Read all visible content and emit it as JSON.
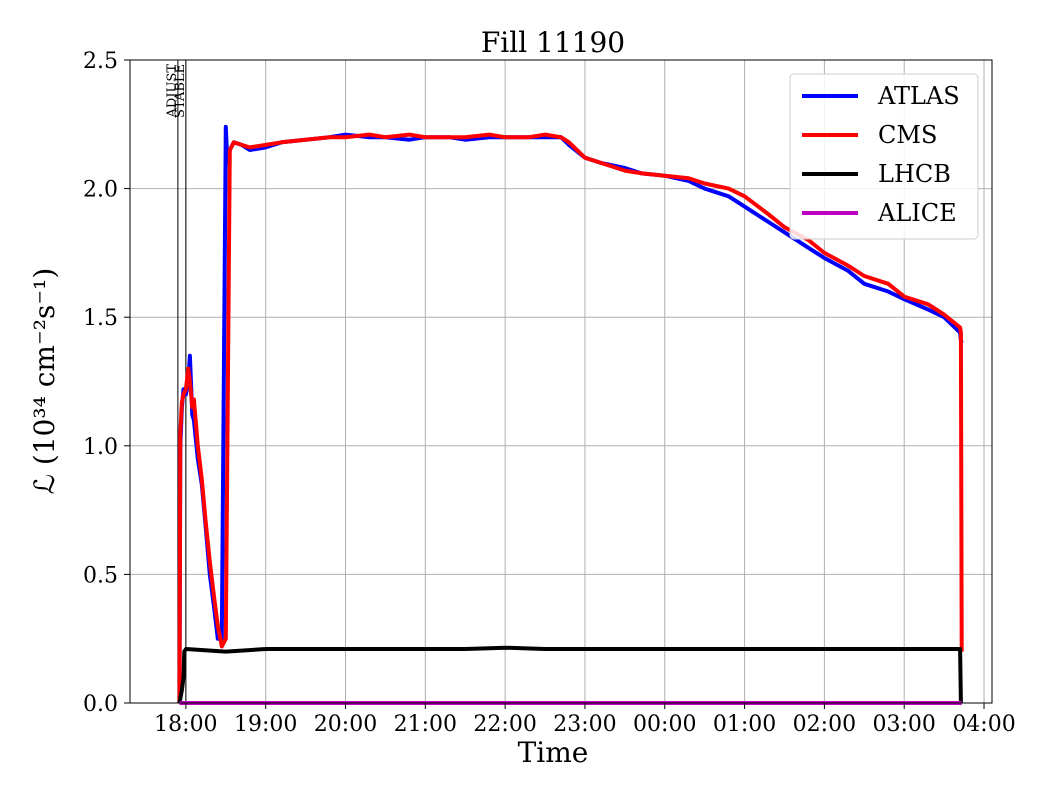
{
  "chart_data": {
    "type": "line",
    "title": "Fill 11190",
    "xlabel": "Time",
    "ylabel": "ℒ (10³⁴ cm⁻²s⁻¹)",
    "x_ticks": [
      "18:00",
      "19:00",
      "20:00",
      "21:00",
      "22:00",
      "23:00",
      "00:00",
      "01:00",
      "02:00",
      "03:00",
      "04:00"
    ],
    "y_ticks": [
      "0.0",
      "0.5",
      "1.0",
      "1.5",
      "2.0",
      "2.5"
    ],
    "xlim_hours": [
      17.3,
      28.1
    ],
    "ylim": [
      0,
      2.5
    ],
    "grid": true,
    "legend_position": "top-right",
    "markers": [
      {
        "label": "ADJUST",
        "x": 17.9
      },
      {
        "label": "STABLE",
        "x": 18.0
      }
    ],
    "series": [
      {
        "name": "ATLAS",
        "color": "#0000ff",
        "x": [
          17.92,
          17.93,
          17.95,
          17.97,
          18.0,
          18.03,
          18.05,
          18.08,
          18.1,
          18.15,
          18.2,
          18.25,
          18.3,
          18.35,
          18.4,
          18.45,
          18.5,
          18.52,
          18.55,
          18.6,
          18.7,
          18.8,
          19.0,
          19.2,
          19.5,
          19.8,
          20.0,
          20.3,
          20.5,
          20.8,
          21.0,
          21.3,
          21.5,
          21.8,
          22.0,
          22.3,
          22.5,
          22.7,
          22.8,
          23.0,
          23.2,
          23.5,
          23.7,
          24.0,
          24.3,
          24.5,
          24.8,
          25.0,
          25.3,
          25.5,
          25.8,
          26.0,
          26.3,
          26.5,
          26.8,
          27.0,
          27.3,
          27.5,
          27.7,
          27.71,
          27.72
        ],
        "y": [
          0.0,
          1.0,
          1.15,
          1.22,
          1.2,
          1.25,
          1.35,
          1.12,
          1.1,
          0.95,
          0.85,
          0.68,
          0.5,
          0.38,
          0.25,
          0.25,
          2.24,
          2.1,
          2.15,
          2.18,
          2.17,
          2.15,
          2.16,
          2.18,
          2.19,
          2.2,
          2.21,
          2.2,
          2.2,
          2.19,
          2.2,
          2.2,
          2.19,
          2.2,
          2.2,
          2.2,
          2.2,
          2.2,
          2.17,
          2.12,
          2.1,
          2.08,
          2.06,
          2.05,
          2.03,
          2.0,
          1.97,
          1.93,
          1.87,
          1.83,
          1.77,
          1.73,
          1.68,
          1.63,
          1.6,
          1.57,
          1.53,
          1.5,
          1.44,
          1.41,
          1.4
        ]
      },
      {
        "name": "CMS",
        "color": "#ff0000",
        "x": [
          17.92,
          17.93,
          17.95,
          17.97,
          18.0,
          18.03,
          18.05,
          18.08,
          18.1,
          18.15,
          18.2,
          18.25,
          18.3,
          18.35,
          18.4,
          18.45,
          18.5,
          18.55,
          18.6,
          18.7,
          18.8,
          19.0,
          19.2,
          19.5,
          19.8,
          20.0,
          20.3,
          20.5,
          20.8,
          21.0,
          21.3,
          21.5,
          21.8,
          22.0,
          22.3,
          22.5,
          22.7,
          22.8,
          23.0,
          23.2,
          23.5,
          23.7,
          24.0,
          24.3,
          24.5,
          24.8,
          25.0,
          25.3,
          25.5,
          25.8,
          26.0,
          26.3,
          26.5,
          26.8,
          27.0,
          27.3,
          27.5,
          27.7,
          27.71,
          27.72
        ],
        "y": [
          0.0,
          1.05,
          1.17,
          1.2,
          1.22,
          1.3,
          1.25,
          1.15,
          1.18,
          1.0,
          0.87,
          0.7,
          0.55,
          0.42,
          0.3,
          0.22,
          0.25,
          2.15,
          2.18,
          2.17,
          2.16,
          2.17,
          2.18,
          2.19,
          2.2,
          2.2,
          2.21,
          2.2,
          2.21,
          2.2,
          2.2,
          2.2,
          2.21,
          2.2,
          2.2,
          2.21,
          2.2,
          2.18,
          2.12,
          2.1,
          2.07,
          2.06,
          2.05,
          2.04,
          2.02,
          2.0,
          1.97,
          1.9,
          1.85,
          1.8,
          1.75,
          1.7,
          1.66,
          1.63,
          1.58,
          1.55,
          1.51,
          1.46,
          1.44,
          0.2
        ]
      },
      {
        "name": "LHCB",
        "color": "#000000",
        "x": [
          17.92,
          17.95,
          17.97,
          17.98,
          18.0,
          18.5,
          19.0,
          19.5,
          20.0,
          20.5,
          21.0,
          21.5,
          22.0,
          22.5,
          23.0,
          23.5,
          24.0,
          24.5,
          25.0,
          25.5,
          26.0,
          26.5,
          27.0,
          27.5,
          27.7,
          27.71
        ],
        "y": [
          0.0,
          0.05,
          0.1,
          0.2,
          0.21,
          0.2,
          0.21,
          0.21,
          0.21,
          0.21,
          0.21,
          0.21,
          0.215,
          0.21,
          0.21,
          0.21,
          0.21,
          0.21,
          0.21,
          0.21,
          0.21,
          0.21,
          0.21,
          0.21,
          0.21,
          0.0
        ]
      },
      {
        "name": "ALICE",
        "color": "#bf00bf",
        "x": [
          17.92,
          27.72
        ],
        "y": [
          0.0,
          0.0
        ]
      }
    ]
  }
}
